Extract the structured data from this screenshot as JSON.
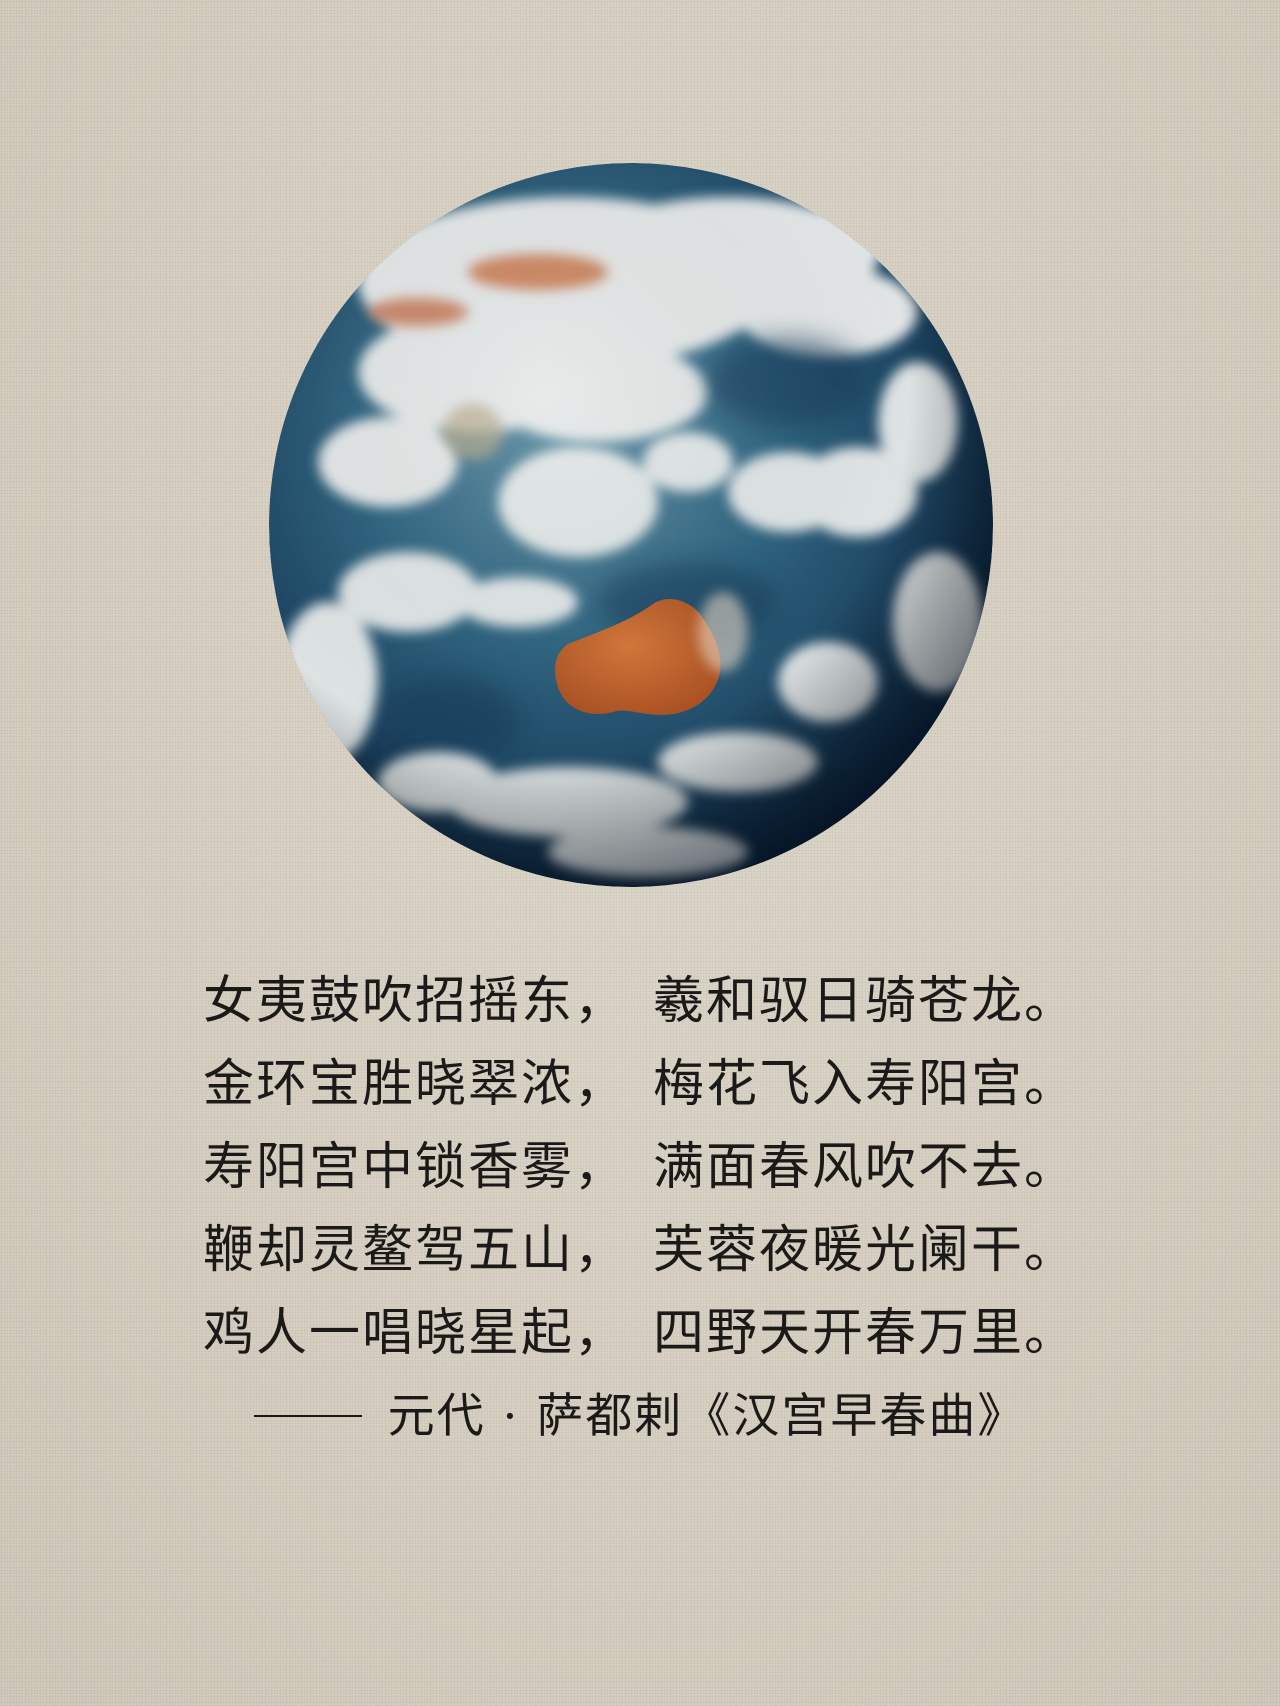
{
  "image": {
    "subject": "earth-globe",
    "colors": {
      "background": "#d9d2c4",
      "ocean": "#1f4a6b",
      "ocean_light": "#4f7f96",
      "cloud": "#eef0ee",
      "land": "#c2622c",
      "text": "#1c1a18"
    }
  },
  "poem": {
    "lines": [
      {
        "first": "女夷鼓吹招摇东，",
        "second": "羲和驭日骑苍龙。"
      },
      {
        "first": "金环宝胜晓翠浓，",
        "second": "梅花飞入寿阳宫。"
      },
      {
        "first": "寿阳宫中锁香雾，",
        "second": "满面春风吹不去。"
      },
      {
        "first": "鞭却灵鳌驾五山，",
        "second": "芙蓉夜暖光阑干。"
      },
      {
        "first": "鸡人一唱晓星起，",
        "second": "四野天开春万里。"
      }
    ],
    "attribution": "元代 · 萨都剌《汉宫早春曲》"
  }
}
